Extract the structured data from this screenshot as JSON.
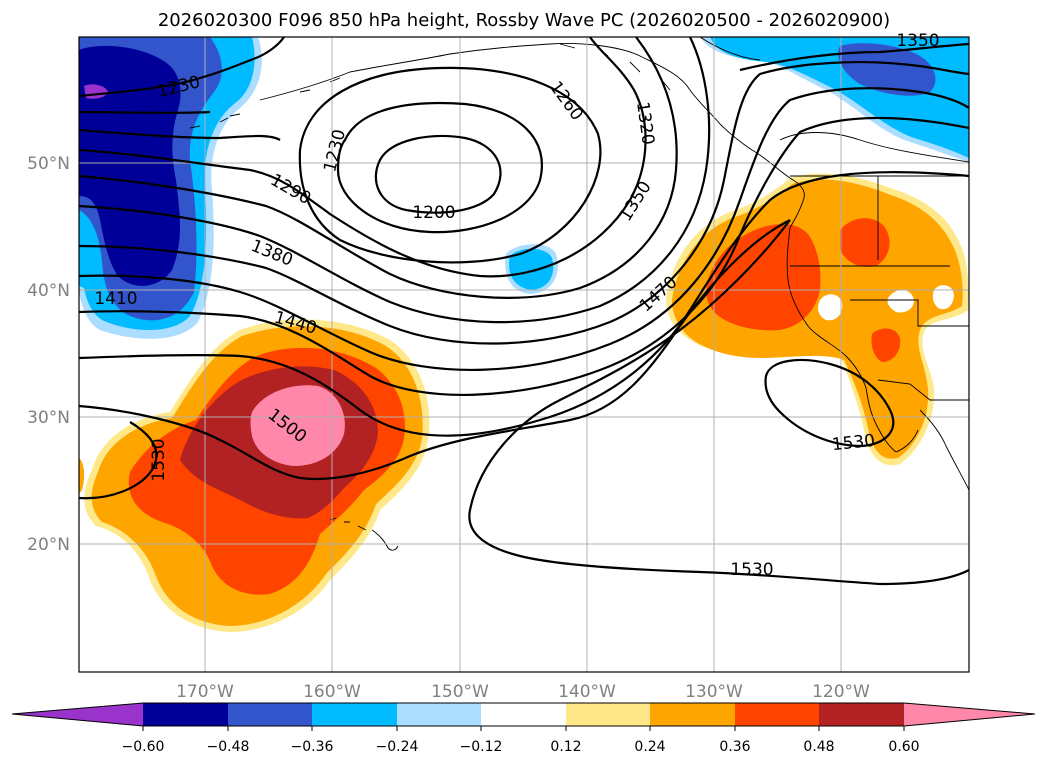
{
  "title": "2026020300 F096 850 hPa height, Rossby Wave PC (2026020500 - 2026020900)",
  "map": {
    "latitude_labels": [
      "50°N",
      "40°N",
      "30°N",
      "20°N"
    ],
    "longitude_labels": [
      "170°W",
      "160°W",
      "150°W",
      "140°W",
      "130°W",
      "120°W"
    ]
  },
  "contour_labels": {
    "c1230a": "1230",
    "c1230b": "1230",
    "c1260": "1260",
    "c1320": "1320",
    "c1350a": "1350",
    "c1350b": "1350",
    "c1290": "1290",
    "c1200": "1200",
    "c1380": "1380",
    "c1410": "1410",
    "c1440": "1440",
    "c1470": "1470",
    "c1500": "1500",
    "c1530a": "1530",
    "c1530b": "1530",
    "c1530c": "1530"
  },
  "colorbar": {
    "ticks": [
      "−0.60",
      "−0.48",
      "−0.36",
      "−0.24",
      "−0.12",
      "0.12",
      "0.24",
      "0.36",
      "0.48",
      "0.60"
    ],
    "colors": {
      "below": "#9933cc",
      "b1": "#000099",
      "b2": "#3355cc",
      "b3": "#00bbff",
      "b4": "#aaddff",
      "b5": "#ffffff",
      "b6": "#ffe88a",
      "b7": "#ffa500",
      "b8": "#ff4400",
      "b9": "#b22222",
      "above": "#ff88aa"
    }
  }
}
